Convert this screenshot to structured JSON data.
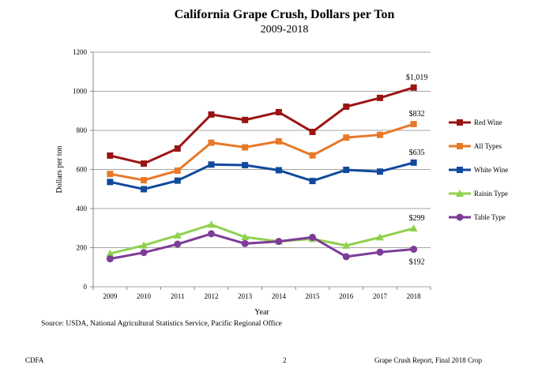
{
  "chart_data": {
    "type": "line",
    "title": "California Grape Crush, Dollars per Ton",
    "subtitle": "2009-2018",
    "xlabel": "Year",
    "ylabel": "Dollars per ton",
    "ylim": [
      0,
      1200
    ],
    "yticks": [
      0,
      200,
      400,
      600,
      800,
      1000,
      1200
    ],
    "grid": true,
    "legend": "right",
    "categories": [
      "2009",
      "2010",
      "2011",
      "2012",
      "2013",
      "2014",
      "2015",
      "2016",
      "2017",
      "2018"
    ],
    "series": [
      {
        "name": "Red Wine",
        "color": "#9b1414",
        "marker": "square",
        "values": [
          671,
          630,
          707,
          881,
          853,
          893,
          792,
          921,
          966,
          1019
        ]
      },
      {
        "name": "All Types",
        "color": "#e8792a",
        "marker": "square",
        "values": [
          577,
          545,
          594,
          737,
          713,
          744,
          672,
          763,
          777,
          832
        ]
      },
      {
        "name": "White Wine",
        "color": "#104a9c",
        "marker": "square",
        "values": [
          536,
          499,
          543,
          625,
          622,
          596,
          541,
          598,
          589,
          635
        ]
      },
      {
        "name": "Raisin Type",
        "color": "#8fd14f",
        "marker": "triangle",
        "values": [
          170,
          212,
          263,
          318,
          254,
          232,
          245,
          211,
          253,
          299
        ]
      },
      {
        "name": "Table Type",
        "color": "#7d3c98",
        "marker": "circle",
        "values": [
          143,
          175,
          218,
          271,
          221,
          232,
          253,
          154,
          177,
          192
        ]
      }
    ],
    "annotations": [
      {
        "series": "Red Wine",
        "text": "$1,019",
        "position": "above"
      },
      {
        "series": "All Types",
        "text": "$832",
        "position": "above"
      },
      {
        "series": "White Wine",
        "text": "$635",
        "position": "above"
      },
      {
        "series": "Raisin Type",
        "text": "$299",
        "position": "above"
      },
      {
        "series": "Table Type",
        "text": "$192",
        "position": "below"
      }
    ]
  },
  "source": "Source: USDA, National Agricultural Statistics Service, Pacific Regional Office",
  "footer": {
    "left": "CDFA",
    "page": "2",
    "right": "Grape Crush Report, Final 2018 Crop"
  }
}
